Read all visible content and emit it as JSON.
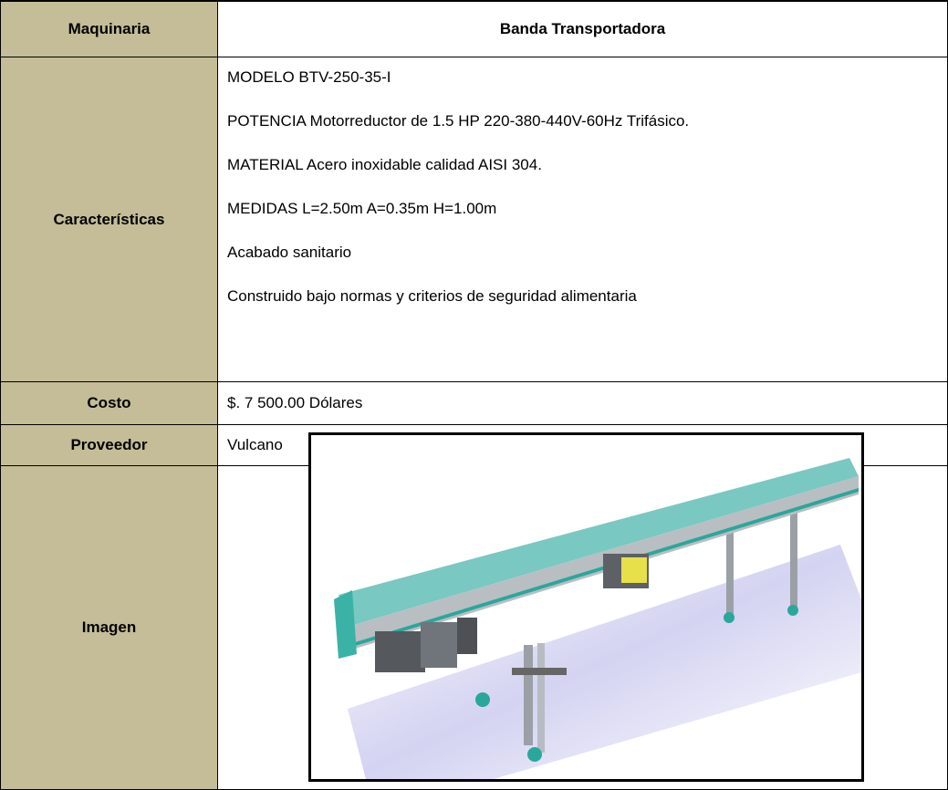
{
  "table": {
    "rows": [
      [
        "Maquinaria",
        "Banda Transportadora"
      ],
      [
        "Características",
        [
          "MODELO BTV-250-35-I",
          "POTENCIA Motorreductor de 1.5 HP 220-380-440V-60Hz Trifásico.",
          "MATERIAL Acero inoxidable calidad AISI 304.",
          "MEDIDAS L=2.50m A=0.35m H=1.00m",
          "Acabado sanitario",
          "Construido bajo normas y criterios de seguridad alimentaria"
        ]
      ],
      [
        "Costo",
        "$. 7 500.00 Dólares"
      ],
      [
        "Proveedor",
        "Vulcano"
      ],
      [
        "Imagen"
      ]
    ]
  }
}
